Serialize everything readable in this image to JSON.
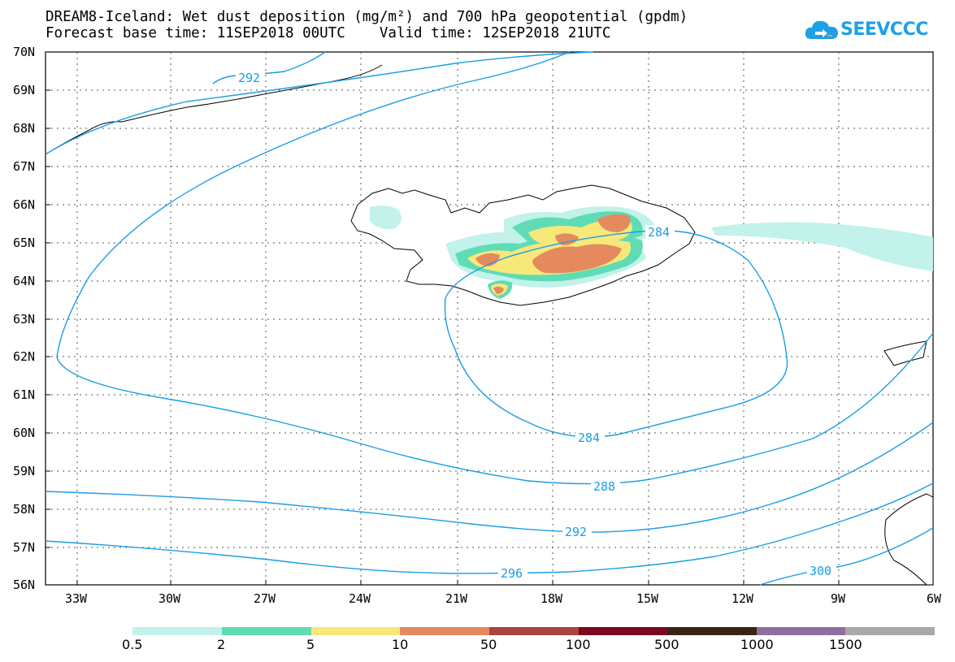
{
  "title": {
    "line1": "DREAM8-Iceland: Wet dust deposition (mg/m²) and 700 hPa geopotential (gpdm)",
    "line2": "Forecast base time: 11SEP2018 00UTC    Valid time: 12SEP2018 21UTC"
  },
  "logo": {
    "text": "SEEVCCC",
    "icon": "cloud-icon"
  },
  "axes": {
    "lat_labels": [
      "70N",
      "69N",
      "68N",
      "67N",
      "66N",
      "65N",
      "64N",
      "63N",
      "62N",
      "61N",
      "60N",
      "59N",
      "58N",
      "57N",
      "56N"
    ],
    "lon_labels": [
      "33W",
      "30W",
      "27W",
      "24W",
      "21W",
      "18W",
      "15W",
      "12W",
      "9W",
      "6W"
    ]
  },
  "contours": {
    "color": "#1a9ee6",
    "labels": [
      "292",
      "284",
      "284",
      "288",
      "292",
      "296",
      "300"
    ]
  },
  "legend": {
    "colors": [
      "#c2f2ea",
      "#5fdcb5",
      "#f7e87a",
      "#e58a5e",
      "#a9453c",
      "#7a0a1e",
      "#3a2418",
      "#8f6f9f",
      "#a9a9a9"
    ],
    "labels": [
      "0.5",
      "2",
      "5",
      "10",
      "50",
      "100",
      "500",
      "1000",
      "1500"
    ]
  }
}
